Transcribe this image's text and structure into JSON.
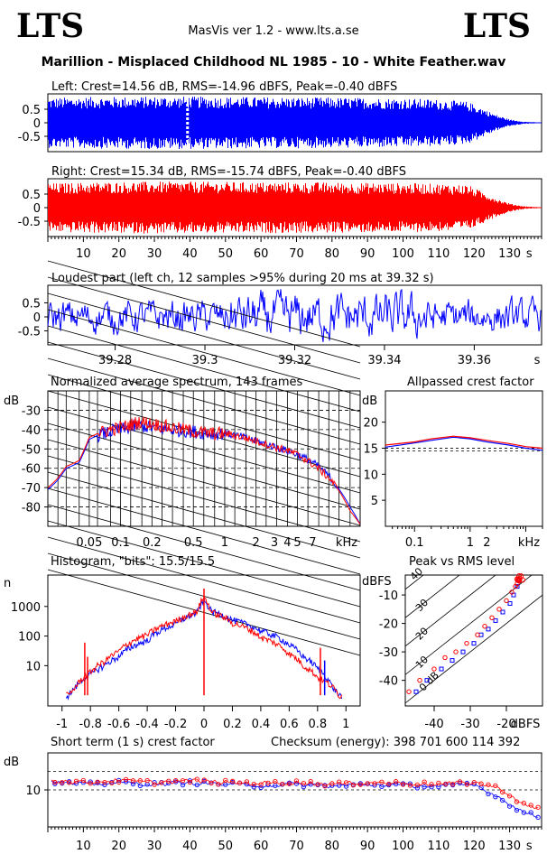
{
  "header": {
    "logo_left": "LTS",
    "logo_right": "LTS",
    "app": "MasVis ver 1.2 - www.lts.a.se",
    "file_title": "Marillion - Misplaced Childhood NL 1985 - 10 - White Feather.wav"
  },
  "colors": {
    "left": "#0000ff",
    "right": "#ff0000",
    "frame": "#000000"
  },
  "chart_data": [
    {
      "id": "left_waveform",
      "type": "area",
      "title": "Left: Crest=14.56 dB, RMS=-14.96 dBFS, Peak=-0.40 dBFS",
      "yticks": [
        "0.5",
        "0",
        "-0.5"
      ],
      "ylim": [
        -1,
        1
      ],
      "xlim": [
        0,
        139
      ],
      "series": [
        {
          "name": "Left",
          "color": "#0000ff",
          "x": [
            0,
            10,
            20,
            30,
            40,
            50,
            60,
            70,
            80,
            90,
            100,
            110,
            118,
            122,
            126,
            130,
            134,
            139
          ],
          "peak": [
            0.92,
            0.95,
            0.96,
            0.97,
            0.97,
            0.96,
            0.95,
            0.94,
            0.93,
            0.92,
            0.9,
            0.86,
            0.78,
            0.55,
            0.3,
            0.12,
            0.04,
            0.01
          ]
        }
      ],
      "marker_x": 39.32
    },
    {
      "id": "right_waveform",
      "type": "area",
      "title": "Right: Crest=15.34 dB, RMS=-15.74 dBFS, Peak=-0.40 dBFS",
      "yticks": [
        "0.5",
        "0",
        "-0.5"
      ],
      "ylim": [
        -1,
        1
      ],
      "xlim": [
        0,
        139
      ],
      "xticks": [
        "10",
        "20",
        "30",
        "40",
        "50",
        "60",
        "70",
        "80",
        "90",
        "100",
        "110",
        "120",
        "130",
        "s"
      ],
      "series": [
        {
          "name": "Right",
          "color": "#ff0000",
          "x": [
            0,
            10,
            20,
            30,
            40,
            50,
            60,
            70,
            80,
            90,
            100,
            110,
            118,
            122,
            126,
            130,
            134,
            139
          ],
          "peak": [
            0.9,
            0.93,
            0.95,
            0.96,
            0.96,
            0.95,
            0.94,
            0.94,
            0.93,
            0.92,
            0.91,
            0.88,
            0.85,
            0.6,
            0.35,
            0.15,
            0.05,
            0.01
          ]
        }
      ]
    },
    {
      "id": "loudest_part",
      "type": "line",
      "title": "Loudest part (left  ch, 12 samples >95% during 20 ms at 39.32 s)",
      "yticks": [
        "0.5",
        "0",
        "-0.5"
      ],
      "ylim": [
        -1,
        1
      ],
      "xlim": [
        39.265,
        39.375
      ],
      "xticks": [
        "39.28",
        "39.3",
        "39.32",
        "39.34",
        "39.36",
        "s"
      ],
      "series": [
        {
          "name": "Left",
          "color": "#0000ff"
        }
      ]
    },
    {
      "id": "spectrum",
      "type": "line",
      "title": "Normalized average spectrum, 143 frames",
      "ylabel": "dB",
      "yticks": [
        "-30",
        "-40",
        "-50",
        "-60",
        "-70",
        "-80"
      ],
      "xticks": [
        "0.05",
        "0.1",
        "0.2",
        "0.5",
        "1",
        "2",
        "3",
        "4",
        "5",
        "7",
        "kHz"
      ],
      "xlim": [
        0.02,
        20
      ],
      "ylim": [
        -90,
        -20
      ],
      "series": [
        {
          "name": "Left",
          "color": "#0000ff",
          "x": [
            0.02,
            0.025,
            0.03,
            0.04,
            0.05,
            0.06,
            0.08,
            0.1,
            0.15,
            0.2,
            0.3,
            0.5,
            0.7,
            1,
            1.5,
            2,
            3,
            5,
            7,
            10,
            13,
            16,
            20
          ],
          "y": [
            -71,
            -66,
            -60,
            -57,
            -45,
            -43,
            -41,
            -40,
            -38,
            -39,
            -40,
            -41,
            -42,
            -42,
            -44,
            -46,
            -49,
            -53,
            -57,
            -64,
            -72,
            -80,
            -89
          ]
        },
        {
          "name": "Right",
          "color": "#ff0000",
          "x": [
            0.02,
            0.025,
            0.03,
            0.04,
            0.05,
            0.06,
            0.08,
            0.1,
            0.15,
            0.2,
            0.3,
            0.5,
            0.7,
            1,
            1.5,
            2,
            3,
            5,
            7,
            10,
            13,
            16,
            20
          ],
          "y": [
            -70,
            -65,
            -59,
            -56,
            -44,
            -42,
            -40,
            -39,
            -36,
            -37,
            -39,
            -41,
            -42,
            -42,
            -44,
            -46,
            -49,
            -53,
            -58,
            -65,
            -73,
            -82,
            -89
          ]
        }
      ]
    },
    {
      "id": "allpassed_crest",
      "type": "line",
      "title": "Allpassed crest factor",
      "ylabel": "dB",
      "yticks": [
        "20",
        "15",
        "10",
        "5"
      ],
      "xticks": [
        "0.1",
        "1",
        "2",
        "kHz"
      ],
      "xlim": [
        0.03,
        20
      ],
      "ylim": [
        0,
        26
      ],
      "series": [
        {
          "name": "Left",
          "color": "#0000ff",
          "x": [
            0.03,
            0.1,
            0.2,
            0.5,
            1,
            2,
            5,
            10,
            20
          ],
          "y": [
            15.2,
            16,
            16.5,
            17.1,
            16.8,
            16.2,
            15.6,
            15,
            14.6
          ]
        },
        {
          "name": "Right",
          "color": "#ff0000",
          "x": [
            0.03,
            0.1,
            0.2,
            0.5,
            1,
            2,
            5,
            10,
            20
          ],
          "y": [
            15.6,
            16.2,
            16.8,
            17.3,
            17,
            16.5,
            15.9,
            15.3,
            15
          ]
        }
      ]
    },
    {
      "id": "histogram",
      "type": "line",
      "title": "Histogram, \"bits\": 15.5/15.5",
      "ylabel": "n",
      "yticks": [
        "1000",
        "100",
        "10"
      ],
      "xticks": [
        "-1",
        "-0.8",
        "-0.6",
        "-0.4",
        "-0.2",
        "0",
        "0.2",
        "0.4",
        "0.6",
        "0.8",
        "1"
      ],
      "xlim": [
        -1.1,
        1.1
      ],
      "series": [
        {
          "name": "Left",
          "color": "#0000ff",
          "x": [
            -0.95,
            -0.9,
            -0.8,
            -0.7,
            -0.6,
            -0.4,
            -0.2,
            -0.05,
            0,
            0.05,
            0.2,
            0.4,
            0.6,
            0.7,
            0.8,
            0.9,
            0.95
          ],
          "y": [
            1,
            2,
            5,
            10,
            20,
            70,
            250,
            600,
            1500,
            700,
            350,
            150,
            50,
            20,
            8,
            2,
            1
          ]
        },
        {
          "name": "Right",
          "color": "#ff0000",
          "x": [
            -0.95,
            -0.9,
            -0.8,
            -0.7,
            -0.6,
            -0.4,
            -0.2,
            -0.05,
            0,
            0.05,
            0.2,
            0.4,
            0.6,
            0.7,
            0.8,
            0.9,
            0.95
          ],
          "y": [
            1,
            2,
            6,
            14,
            30,
            110,
            320,
            650,
            2000,
            650,
            280,
            90,
            25,
            10,
            4,
            2,
            1
          ]
        }
      ]
    },
    {
      "id": "peak_vs_rms",
      "type": "scatter",
      "title": "Peak vs RMS level",
      "ylabel": "dBFS",
      "xlabel": "dBFS",
      "yticks": [
        "-10",
        "-20",
        "-30",
        "-40"
      ],
      "xticks": [
        "-40",
        "-30",
        "-20",
        "dBFS"
      ],
      "diag_labels": [
        "40",
        "30",
        "20",
        "10",
        "0 dB"
      ],
      "xlim": [
        -48,
        -10
      ],
      "ylim": [
        -49,
        -3
      ],
      "series": [
        {
          "name": "Left",
          "color": "#0000ff",
          "marker": "square",
          "x": [
            -45,
            -42,
            -38,
            -35,
            -32,
            -29,
            -27,
            -25,
            -23,
            -21,
            -19,
            -18,
            -17,
            -16.5
          ],
          "y": [
            -44,
            -40,
            -36,
            -33,
            -30,
            -27,
            -24,
            -22,
            -19,
            -16,
            -13,
            -10,
            -7,
            -5
          ]
        },
        {
          "name": "Right",
          "color": "#ff0000",
          "marker": "circle",
          "x": [
            -47,
            -44,
            -40,
            -37,
            -34,
            -31,
            -28,
            -26,
            -24,
            -22,
            -20,
            -18.5,
            -17.5,
            -17,
            -16.5
          ],
          "y": [
            -44,
            -40,
            -36,
            -32,
            -30,
            -27,
            -24,
            -21,
            -18,
            -15,
            -12,
            -9,
            -7,
            -6,
            -5
          ]
        }
      ]
    },
    {
      "id": "short_term_crest",
      "type": "scatter",
      "title": "Short term (1 s) crest factor",
      "checksum": "Checksum (energy):   398 701 600 114 392",
      "ylabel": "dB",
      "yticks": [
        "10"
      ],
      "xticks": [
        "10",
        "20",
        "30",
        "40",
        "50",
        "60",
        "70",
        "80",
        "90",
        "100",
        "110",
        "120",
        "130",
        "s"
      ],
      "xlim": [
        0,
        139
      ],
      "ylim": [
        0,
        20
      ],
      "series": [
        {
          "name": "Left",
          "color": "#0000ff",
          "marker": "circle",
          "x": [
            2,
            10,
            20,
            30,
            40,
            50,
            60,
            70,
            80,
            90,
            100,
            110,
            120,
            125,
            128,
            131,
            134,
            137
          ],
          "y": [
            12,
            11.5,
            12,
            11.5,
            12,
            11.5,
            11.2,
            11.5,
            11,
            11.5,
            11.2,
            11,
            11.5,
            9,
            7.5,
            5.5,
            4,
            3
          ]
        },
        {
          "name": "Right",
          "color": "#ff0000",
          "marker": "circle",
          "x": [
            2,
            10,
            20,
            30,
            40,
            50,
            60,
            70,
            80,
            90,
            100,
            110,
            120,
            125,
            128,
            131,
            134,
            137
          ],
          "y": [
            12.5,
            12,
            12.5,
            12,
            12.5,
            12,
            11.8,
            12,
            11.5,
            12,
            11.8,
            11.5,
            12,
            11,
            10,
            8,
            6,
            5
          ]
        }
      ]
    }
  ]
}
